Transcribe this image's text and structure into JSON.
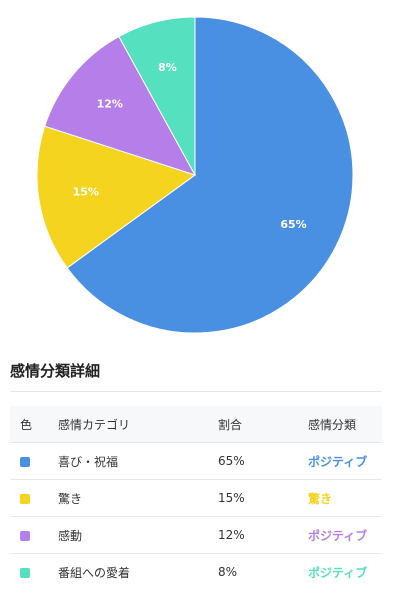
{
  "chart_data": {
    "type": "pie",
    "title": "",
    "slices": [
      {
        "label": "喜び・祝福",
        "value": 65,
        "display": "65%",
        "color": "#4a90e2"
      },
      {
        "label": "驚き",
        "value": 15,
        "display": "15%",
        "color": "#f5d41f"
      },
      {
        "label": "感動",
        "value": 12,
        "display": "12%",
        "color": "#b57ee8"
      },
      {
        "label": "番組への愛着",
        "value": 8,
        "display": "8%",
        "color": "#55e0c0"
      }
    ]
  },
  "section": {
    "title": "感情分類詳細"
  },
  "table": {
    "headers": {
      "color": "色",
      "category": "感情カテゴリ",
      "ratio": "割合",
      "classification": "感情分類"
    },
    "rows": [
      {
        "category": "喜び・祝福",
        "ratio": "65%",
        "classification": "ポジティブ",
        "color": "#4a90e2",
        "class_color": "#4a90e2"
      },
      {
        "category": "驚き",
        "ratio": "15%",
        "classification": "驚き",
        "color": "#f5d41f",
        "class_color": "#f5d41f"
      },
      {
        "category": "感動",
        "ratio": "12%",
        "classification": "ポジティブ",
        "color": "#b57ee8",
        "class_color": "#b57ee8"
      },
      {
        "category": "番組への愛着",
        "ratio": "8%",
        "classification": "ポジティブ",
        "color": "#55e0c0",
        "class_color": "#55e0c0"
      }
    ]
  }
}
